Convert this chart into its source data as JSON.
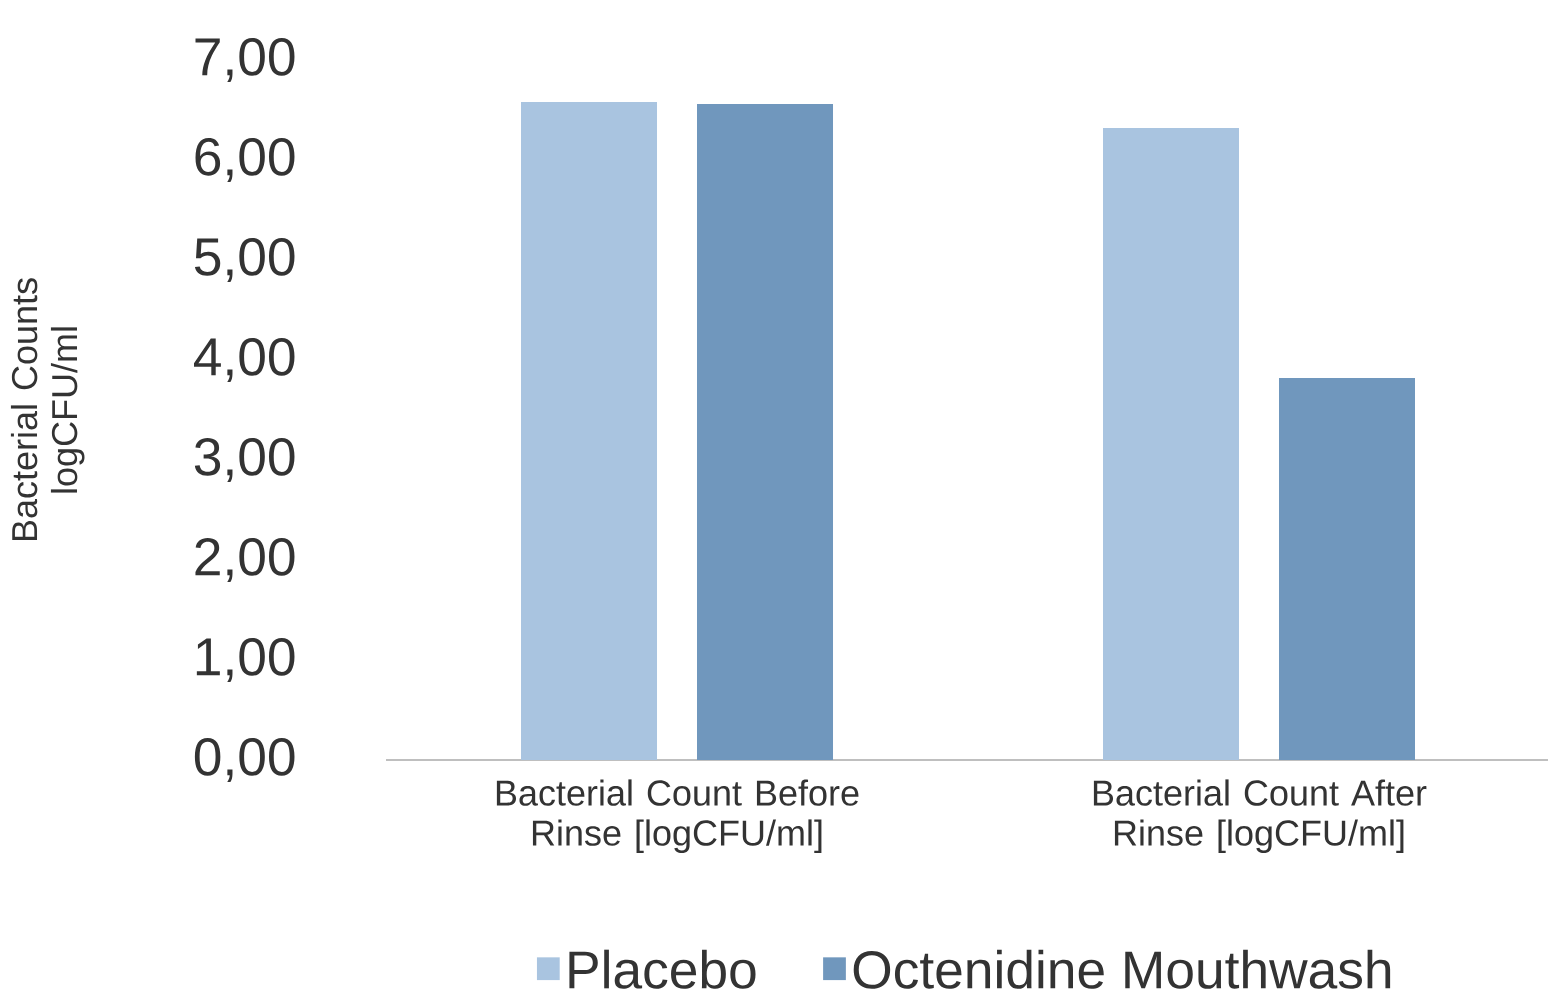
{
  "chart_data": {
    "type": "bar",
    "ylabel": "Bacterial Counts logCFU/ml",
    "categories": [
      "Bacterial Count Before Rinse [logCFU/ml]",
      "Bacterial Count After Rinse [logCFU/ml]"
    ],
    "series": [
      {
        "name": "Placebo",
        "color": "#a9c4e0",
        "values": [
          6.58,
          6.32
        ]
      },
      {
        "name": "Octenidine Mouthwash",
        "color": "#7097bd",
        "values": [
          6.56,
          3.82
        ]
      }
    ],
    "ylim": [
      0,
      7
    ],
    "yticks": [
      {
        "value": 0,
        "label": "0,00"
      },
      {
        "value": 1,
        "label": "1,00"
      },
      {
        "value": 2,
        "label": "2,00"
      },
      {
        "value": 3,
        "label": "3,00"
      },
      {
        "value": 4,
        "label": "4,00"
      },
      {
        "value": 5,
        "label": "5,00"
      },
      {
        "value": 6,
        "label": "6,00"
      },
      {
        "value": 7,
        "label": "7,00"
      }
    ],
    "legend": "bottom"
  }
}
